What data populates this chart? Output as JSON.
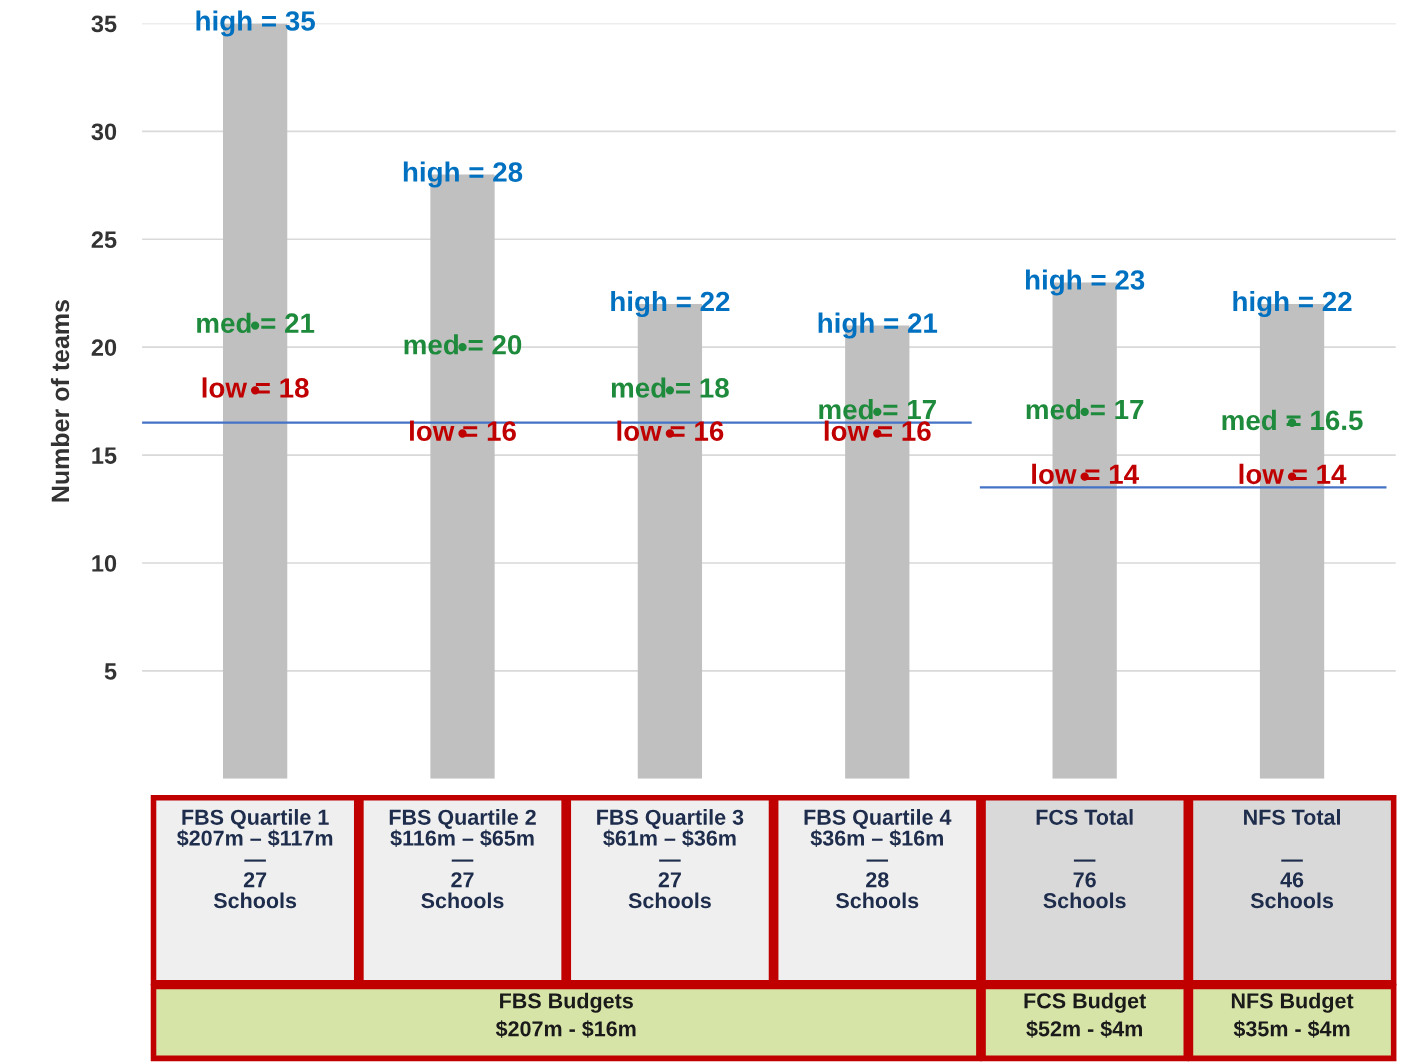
{
  "chart_data": {
    "type": "bar",
    "ylabel": "Number of teams",
    "categories": [
      "FBS Quartile 1\n$207m – $117m\n—\n27\nSchools",
      "FBS Quartile 2\n$116m – $65m\n—\n27\nSchools",
      "FBS Quartile 3\n$61m – $36m\n—\n27\nSchools",
      "FBS Quartile 4\n$36m – $16m\n—\n28\nSchools",
      "FCS Total\n\n—\n76\nSchools",
      "NFS Total\n\n—\n46\nSchools"
    ],
    "series": [
      {
        "color": "#c0c0c0",
        "values": [
          35,
          28,
          22,
          21,
          23,
          22
        ],
        "value_labels": [
          "high = 35",
          "high = 28",
          "high = 22",
          "high = 21",
          "high = 23",
          "high = 22"
        ]
      },
      {
        "type": "scatter",
        "color": "#1e8a3c",
        "marker": "circle",
        "values": [
          21,
          20,
          18,
          17,
          17,
          16.5
        ],
        "value_labels": [
          "med = 21",
          "med = 20",
          "med = 18",
          "med = 17",
          "med = 17",
          "med = 16.5"
        ]
      },
      {
        "type": "scatter",
        "color": "#c00000",
        "marker": "circle",
        "values": [
          18,
          16,
          16,
          16,
          14,
          14
        ],
        "value_labels": [
          "low = 18",
          "low = 16",
          "low = 16",
          "low = 16",
          "low = 14",
          "low = 14"
        ]
      }
    ],
    "ylim": [
      0,
      35
    ],
    "yticks": [
      5,
      10,
      15,
      20,
      25,
      30,
      35
    ],
    "grid": "y",
    "legend": false,
    "ref_lines": [
      {
        "axis": "y",
        "value": 16.5,
        "color": "#4472c4"
      },
      {
        "axis": "y",
        "value": 13.5,
        "color": "#4472c4"
      }
    ],
    "annotations": [
      "FBS Budgets\n$207m - $16m",
      "FCS Budget\n$52m - $4m",
      "NFS Budget\n$35m - $4m"
    ]
  }
}
